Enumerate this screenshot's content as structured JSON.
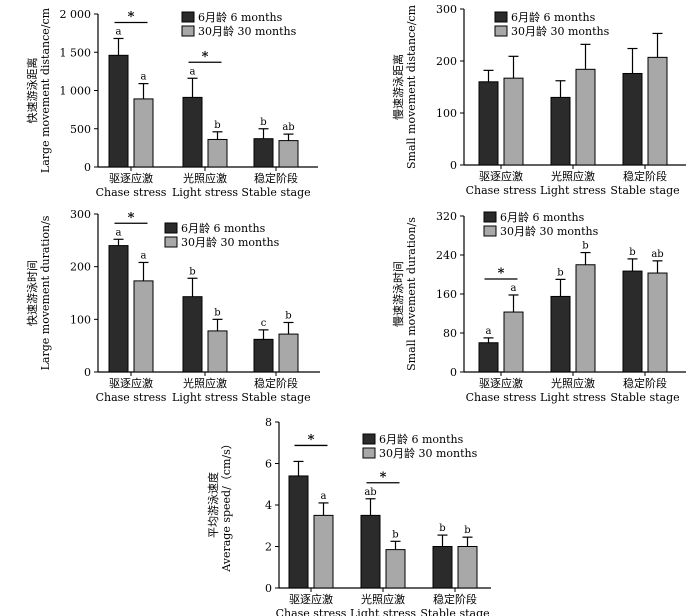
{
  "colors": {
    "bar_dark": "#2b2b2b",
    "bar_light": "#a8a8a8",
    "axis": "#000000"
  },
  "legend": [
    "6月龄 6 months",
    "30月龄 30 months"
  ],
  "chart_data": [
    {
      "type": "bar",
      "ylabel_cn": "快速游泳距离",
      "ylabel_en": "Large movement distance/cm",
      "categories_cn": [
        "驱逐应激",
        "光照应激",
        "稳定阶段"
      ],
      "categories_en": [
        "Chase stress",
        "Light stress",
        "Stable stage"
      ],
      "ylim": [
        0,
        2000
      ],
      "yticks": [
        0,
        500,
        1000,
        1500,
        2000
      ],
      "ytick_labels": [
        "0",
        "500",
        "1 000",
        "1 500",
        "2 000"
      ],
      "legend_position": "top-right",
      "series": [
        {
          "name": "6月龄 6 months",
          "values": [
            1460,
            910,
            370
          ],
          "errors": [
            220,
            250,
            130
          ],
          "labels": [
            "a",
            "a",
            "b"
          ]
        },
        {
          "name": "30月龄 30 months",
          "values": [
            890,
            360,
            345
          ],
          "errors": [
            200,
            100,
            85
          ],
          "labels": [
            "a",
            "b",
            "ab"
          ]
        }
      ],
      "significance": [
        {
          "category": 0,
          "label": "*"
        },
        {
          "category": 1,
          "label": "*"
        }
      ]
    },
    {
      "type": "bar",
      "ylabel_cn": "慢速游泳距离",
      "ylabel_en": "Small movement distance/cm",
      "categories_cn": [
        "驱逐应激",
        "光照应激",
        "稳定阶段"
      ],
      "categories_en": [
        "Chase stress",
        "Light stress",
        "Stable stage"
      ],
      "ylim": [
        0,
        300
      ],
      "yticks": [
        0,
        100,
        200,
        300
      ],
      "ytick_labels": [
        "0",
        "100",
        "200",
        "300"
      ],
      "legend_position": "top-left",
      "series": [
        {
          "name": "6月龄 6 months",
          "values": [
            160,
            130,
            176
          ],
          "errors": [
            22,
            32,
            48
          ],
          "labels": []
        },
        {
          "name": "30月龄 30 months",
          "values": [
            167,
            184,
            207
          ],
          "errors": [
            42,
            48,
            46
          ],
          "labels": []
        }
      ],
      "significance": []
    },
    {
      "type": "bar",
      "ylabel_cn": "快速游泳时间",
      "ylabel_en": "Large movement duration/s",
      "categories_cn": [
        "驱逐应激",
        "光照应激",
        "稳定阶段"
      ],
      "categories_en": [
        "Chase stress",
        "Light stress",
        "Stable stage"
      ],
      "ylim": [
        0,
        300
      ],
      "yticks": [
        0,
        100,
        200,
        300
      ],
      "ytick_labels": [
        "0",
        "100",
        "200",
        "300"
      ],
      "legend_position": "top-right",
      "series": [
        {
          "name": "6月龄 6 months",
          "values": [
            240,
            143,
            62
          ],
          "errors": [
            12,
            35,
            18
          ],
          "labels": [
            "a",
            "b",
            "c"
          ]
        },
        {
          "name": "30月龄 30 months",
          "values": [
            173,
            78,
            72
          ],
          "errors": [
            35,
            22,
            22
          ],
          "labels": [
            "a",
            "b",
            "b"
          ]
        }
      ],
      "significance": [
        {
          "category": 0,
          "label": "*"
        }
      ]
    },
    {
      "type": "bar",
      "ylabel_cn": "慢速游泳时间",
      "ylabel_en": "Small movement duration/s",
      "categories_cn": [
        "驱逐应激",
        "光照应激",
        "稳定阶段"
      ],
      "categories_en": [
        "Chase stress",
        "Light stress",
        "Stable stage"
      ],
      "ylim": [
        0,
        320
      ],
      "yticks": [
        0,
        80,
        160,
        240,
        320
      ],
      "ytick_labels": [
        "0",
        "80",
        "160",
        "240",
        "320"
      ],
      "legend_position": "top-left",
      "series": [
        {
          "name": "6月龄 6 months",
          "values": [
            60,
            155,
            207
          ],
          "errors": [
            10,
            35,
            25
          ],
          "labels": [
            "a",
            "b",
            "b"
          ]
        },
        {
          "name": "30月龄 30 months",
          "values": [
            123,
            220,
            203
          ],
          "errors": [
            35,
            25,
            25
          ],
          "labels": [
            "a",
            "b",
            "ab"
          ]
        }
      ],
      "significance": [
        {
          "category": 0,
          "label": "*"
        }
      ]
    },
    {
      "type": "bar",
      "ylabel_cn": "平均游泳速度",
      "ylabel_en": "Average speed/（cm/s）",
      "categories_cn": [
        "驱逐应激",
        "光照应激",
        "稳定阶段"
      ],
      "categories_en": [
        "Chase stress",
        "Light stress",
        "Stable stage"
      ],
      "ylim": [
        0,
        8
      ],
      "yticks": [
        0,
        2,
        4,
        6,
        8
      ],
      "ytick_labels": [
        "0",
        "2",
        "4",
        "6",
        "8"
      ],
      "legend_position": "top-right",
      "series": [
        {
          "name": "6月龄 6 months",
          "values": [
            5.4,
            3.5,
            2.0
          ],
          "errors": [
            0.7,
            0.8,
            0.55
          ],
          "labels": [
            "",
            "ab",
            "b"
          ]
        },
        {
          "name": "30月龄 30 months",
          "values": [
            3.5,
            1.85,
            2.0
          ],
          "errors": [
            0.6,
            0.4,
            0.45
          ],
          "labels": [
            "a",
            "b",
            "b"
          ]
        }
      ],
      "significance": [
        {
          "category": 0,
          "label": "*"
        },
        {
          "category": 1,
          "label": "*"
        }
      ]
    }
  ]
}
